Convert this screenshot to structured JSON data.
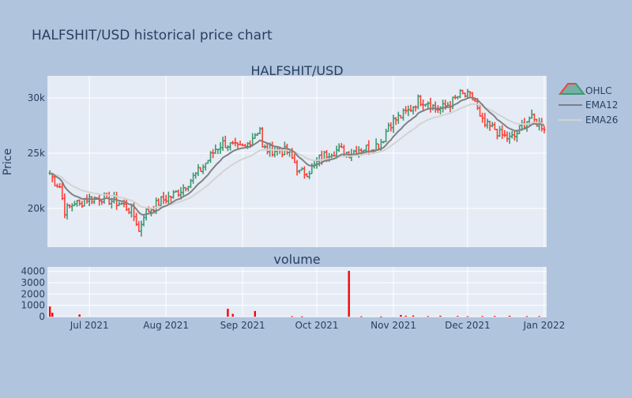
{
  "title": "HALFSHIT/USD historical price chart",
  "colors": {
    "paper": "#b0c4de",
    "plot": "#e5ecf6",
    "grid": "#ffffff",
    "text": "#2a3f5f",
    "increasing": "#3d9970",
    "decreasing": "#ff4136",
    "ema12": "#808080",
    "ema26": "#d3d3d3",
    "volume": "#ff0000"
  },
  "chart_data": [
    {
      "type": "ohlc",
      "title": "HALFSHIT/USD",
      "ylabel": "Price",
      "x_range": [
        "2021-06-14",
        "2022-01-02"
      ],
      "ylim": [
        16500,
        32000
      ],
      "y_ticks": [
        20000,
        25000,
        30000
      ],
      "y_tick_labels": [
        "20k",
        "25k",
        "30k"
      ],
      "x_ticks": [
        "2021-07-01",
        "2021-08-01",
        "2021-09-01",
        "2021-10-01",
        "2021-11-01",
        "2021-12-01",
        "2022-01-01"
      ],
      "x_tick_labels": [
        "Jul 2021",
        "Aug 2021",
        "Sep 2021",
        "Oct 2021",
        "Nov 2021",
        "Dec 2021",
        "Jan 2022"
      ],
      "grid": true,
      "legend_position": "top-right",
      "legend": [
        "OHLC",
        "EMA12",
        "EMA26"
      ],
      "price_path": [
        [
          "2021-06-15",
          23200
        ],
        [
          "2021-06-17",
          22400
        ],
        [
          "2021-06-19",
          22000
        ],
        [
          "2021-06-21",
          19800
        ],
        [
          "2021-06-23",
          20100
        ],
        [
          "2021-06-25",
          20600
        ],
        [
          "2021-06-27",
          20300
        ],
        [
          "2021-06-29",
          20900
        ],
        [
          "2021-07-02",
          20900
        ],
        [
          "2021-07-06",
          21000
        ],
        [
          "2021-07-10",
          20700
        ],
        [
          "2021-07-14",
          20400
        ],
        [
          "2021-07-18",
          19800
        ],
        [
          "2021-07-20",
          18800
        ],
        [
          "2021-07-21",
          17900
        ],
        [
          "2021-07-23",
          19500
        ],
        [
          "2021-07-26",
          20000
        ],
        [
          "2021-07-30",
          20700
        ],
        [
          "2021-08-03",
          21100
        ],
        [
          "2021-08-07",
          21700
        ],
        [
          "2021-08-11",
          22600
        ],
        [
          "2021-08-15",
          23500
        ],
        [
          "2021-08-18",
          24400
        ],
        [
          "2021-08-21",
          25400
        ],
        [
          "2021-08-24",
          25900
        ],
        [
          "2021-08-27",
          25700
        ],
        [
          "2021-08-30",
          25400
        ],
        [
          "2021-09-02",
          25500
        ],
        [
          "2021-09-05",
          26500
        ],
        [
          "2021-09-08",
          27300
        ],
        [
          "2021-09-09",
          25400
        ],
        [
          "2021-09-12",
          25300
        ],
        [
          "2021-09-16",
          25300
        ],
        [
          "2021-09-19",
          25100
        ],
        [
          "2021-09-22",
          24200
        ],
        [
          "2021-09-24",
          23200
        ],
        [
          "2021-09-27",
          23300
        ],
        [
          "2021-09-30",
          23800
        ],
        [
          "2021-10-02",
          24500
        ],
        [
          "2021-10-06",
          25100
        ],
        [
          "2021-10-10",
          25300
        ],
        [
          "2021-10-14",
          25000
        ],
        [
          "2021-10-18",
          25400
        ],
        [
          "2021-10-22",
          25500
        ],
        [
          "2021-10-26",
          25800
        ],
        [
          "2021-10-28",
          26400
        ],
        [
          "2021-10-30",
          27600
        ],
        [
          "2021-11-03",
          28200
        ],
        [
          "2021-11-07",
          28800
        ],
        [
          "2021-11-11",
          29800
        ],
        [
          "2021-11-15",
          29700
        ],
        [
          "2021-11-18",
          29000
        ],
        [
          "2021-11-21",
          29100
        ],
        [
          "2021-11-25",
          29700
        ],
        [
          "2021-11-28",
          30300
        ],
        [
          "2021-12-02",
          30100
        ],
        [
          "2021-12-04",
          29700
        ],
        [
          "2021-12-06",
          28100
        ],
        [
          "2021-12-08",
          27500
        ],
        [
          "2021-12-12",
          27200
        ],
        [
          "2021-12-14",
          26700
        ],
        [
          "2021-12-16",
          26500
        ],
        [
          "2021-12-18",
          26300
        ],
        [
          "2021-12-20",
          26500
        ],
        [
          "2021-12-23",
          27500
        ],
        [
          "2021-12-26",
          28200
        ],
        [
          "2021-12-28",
          27900
        ],
        [
          "2021-12-31",
          27500
        ],
        [
          "2022-01-01",
          27400
        ]
      ]
    },
    {
      "type": "bar",
      "title": "volume",
      "ylim": [
        0,
        4400
      ],
      "y_ticks": [
        0,
        1000,
        2000,
        3000,
        4000
      ],
      "y_tick_labels": [
        "0",
        "1000",
        "2000",
        "3000",
        "4000"
      ],
      "grid": true,
      "volumes": [
        [
          "2021-06-15",
          900
        ],
        [
          "2021-06-16",
          350
        ],
        [
          "2021-06-27",
          200
        ],
        [
          "2021-08-26",
          700
        ],
        [
          "2021-08-28",
          250
        ],
        [
          "2021-09-06",
          500
        ],
        [
          "2021-09-21",
          40
        ],
        [
          "2021-09-25",
          30
        ],
        [
          "2021-10-14",
          4050
        ],
        [
          "2021-10-19",
          30
        ],
        [
          "2021-10-27",
          20
        ],
        [
          "2021-11-04",
          150
        ],
        [
          "2021-11-06",
          80
        ],
        [
          "2021-11-09",
          100
        ],
        [
          "2021-11-15",
          40
        ],
        [
          "2021-11-20",
          80
        ],
        [
          "2021-11-27",
          60
        ],
        [
          "2021-12-01",
          40
        ],
        [
          "2021-12-07",
          50
        ],
        [
          "2021-12-12",
          60
        ],
        [
          "2021-12-18",
          80
        ],
        [
          "2021-12-25",
          40
        ],
        [
          "2021-12-30",
          50
        ]
      ]
    }
  ]
}
